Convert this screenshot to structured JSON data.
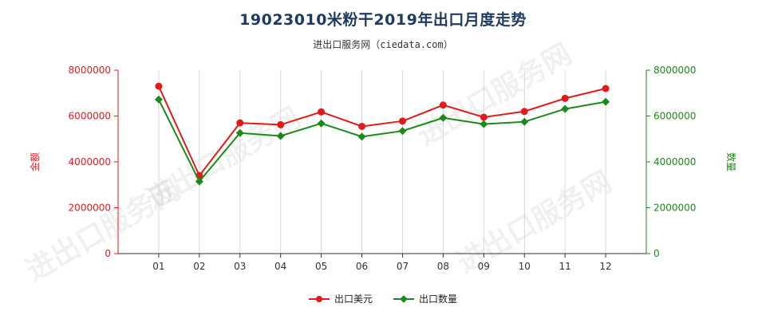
{
  "chart_data": {
    "type": "line",
    "title": "19023010米粉干2019年出口月度走势",
    "subtitle": "进出口服务网（ciedata.com）",
    "watermark": "进出口服务网",
    "categories": [
      "01",
      "02",
      "03",
      "04",
      "05",
      "06",
      "07",
      "08",
      "09",
      "10",
      "11",
      "12"
    ],
    "left_axis": {
      "label": "金额",
      "ylim": [
        0,
        8000000
      ],
      "ticks": [
        "0",
        "2000000",
        "4000000",
        "6000000",
        "8000000"
      ],
      "color": "#e31a1c"
    },
    "right_axis": {
      "label": "数量",
      "ylim": [
        0,
        8000000
      ],
      "ticks": [
        "0",
        "2000000",
        "4000000",
        "6000000",
        "8000000"
      ],
      "color": "#1a8a1a"
    },
    "series": [
      {
        "name": "出口美元",
        "axis": "left",
        "color": "#e31a1c",
        "marker": "circle",
        "values": [
          7300000,
          3400000,
          5700000,
          5620000,
          6180000,
          5550000,
          5780000,
          6480000,
          5950000,
          6200000,
          6770000,
          7200000
        ]
      },
      {
        "name": "出口数量",
        "axis": "right",
        "color": "#1a8a1a",
        "marker": "diamond",
        "values": [
          6720000,
          3150000,
          5260000,
          5130000,
          5680000,
          5100000,
          5350000,
          5920000,
          5650000,
          5750000,
          6310000,
          6620000
        ]
      }
    ],
    "grid": "vertical",
    "legend": "bottom"
  }
}
